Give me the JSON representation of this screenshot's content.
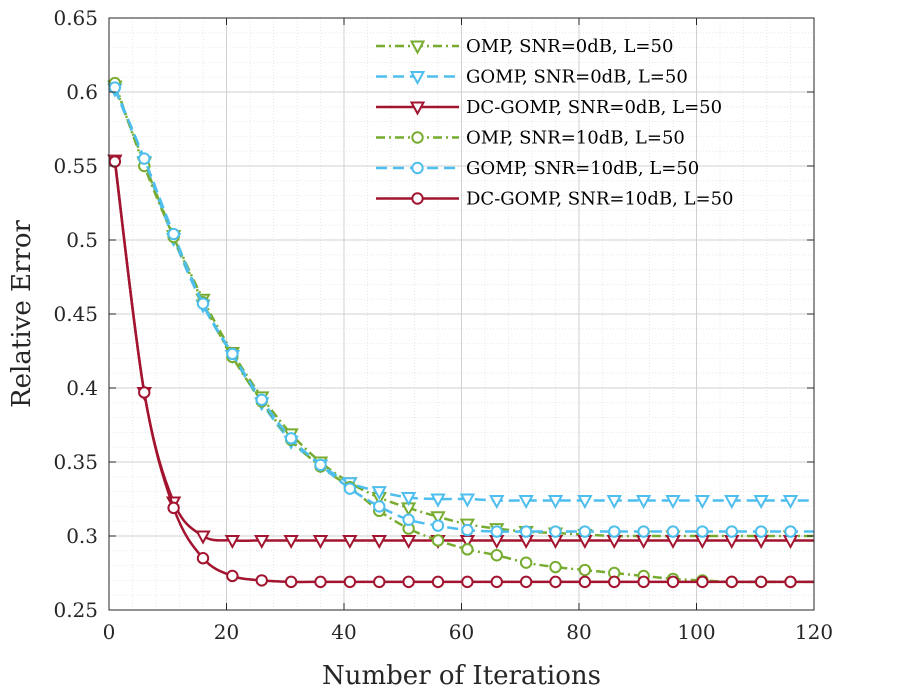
{
  "chart_data": {
    "type": "line",
    "title": "",
    "xlabel": "Number of Iterations",
    "ylabel": "Relative Error",
    "xlim": [
      0,
      120
    ],
    "ylim": [
      0.25,
      0.65
    ],
    "xticks": [
      0,
      20,
      40,
      60,
      80,
      100,
      120
    ],
    "yticks": [
      0.25,
      0.3,
      0.35,
      0.4,
      0.45,
      0.5,
      0.55,
      0.6,
      0.65
    ],
    "xtick_labels": [
      "0",
      "20",
      "40",
      "60",
      "80",
      "100",
      "120"
    ],
    "ytick_labels": [
      "0.25",
      "0.3",
      "0.35",
      "0.4",
      "0.45",
      "0.5",
      "0.55",
      "0.6",
      "0.65"
    ],
    "grid": true,
    "legend_position": "top-right",
    "x": [
      1,
      6,
      11,
      16,
      21,
      26,
      31,
      36,
      41,
      46,
      51,
      56,
      61,
      66,
      71,
      76,
      81,
      86,
      91,
      96,
      101,
      106,
      111,
      116
    ],
    "series": [
      {
        "name": "OMP, SNR=0dB, L=50",
        "color": "#77AC30",
        "line": "dashdot",
        "marker": "triangle-down",
        "values": [
          0.604,
          0.552,
          0.503,
          0.46,
          0.424,
          0.394,
          0.369,
          0.35,
          0.336,
          0.326,
          0.319,
          0.313,
          0.308,
          0.305,
          0.303,
          0.302,
          0.301,
          0.3,
          0.3,
          0.3,
          0.3,
          0.3,
          0.3,
          0.3
        ]
      },
      {
        "name": "GOMP, SNR=0dB, L=50",
        "color": "#4DBEEE",
        "line": "dashed",
        "marker": "triangle-down",
        "values": [
          0.602,
          0.553,
          0.501,
          0.456,
          0.422,
          0.39,
          0.364,
          0.348,
          0.336,
          0.33,
          0.326,
          0.325,
          0.325,
          0.324,
          0.324,
          0.324,
          0.324,
          0.324,
          0.324,
          0.324,
          0.324,
          0.324,
          0.324,
          0.324
        ]
      },
      {
        "name": "DC-GOMP, SNR=0dB, L=50",
        "color": "#A2142F",
        "line": "solid",
        "marker": "triangle-down",
        "values": [
          0.554,
          0.397,
          0.323,
          0.3,
          0.297,
          0.297,
          0.297,
          0.297,
          0.297,
          0.297,
          0.297,
          0.297,
          0.297,
          0.297,
          0.297,
          0.297,
          0.297,
          0.297,
          0.297,
          0.297,
          0.297,
          0.297,
          0.297,
          0.297
        ]
      },
      {
        "name": "OMP, SNR=10dB, L=50",
        "color": "#77AC30",
        "line": "dashdot",
        "marker": "circle",
        "values": [
          0.606,
          0.55,
          0.502,
          0.458,
          0.421,
          0.391,
          0.365,
          0.347,
          0.333,
          0.317,
          0.305,
          0.297,
          0.291,
          0.287,
          0.282,
          0.279,
          0.277,
          0.275,
          0.273,
          0.271,
          0.27,
          0.269,
          0.269,
          0.269
        ]
      },
      {
        "name": "GOMP, SNR=10dB, L=50",
        "color": "#4DBEEE",
        "line": "dashed",
        "marker": "circle",
        "values": [
          0.603,
          0.555,
          0.504,
          0.457,
          0.423,
          0.392,
          0.366,
          0.348,
          0.332,
          0.32,
          0.311,
          0.307,
          0.304,
          0.303,
          0.303,
          0.303,
          0.303,
          0.303,
          0.303,
          0.303,
          0.303,
          0.303,
          0.303,
          0.303
        ]
      },
      {
        "name": "DC-GOMP, SNR=10dB, L=50",
        "color": "#A2142F",
        "line": "solid",
        "marker": "circle",
        "values": [
          0.553,
          0.397,
          0.319,
          0.285,
          0.273,
          0.27,
          0.269,
          0.269,
          0.269,
          0.269,
          0.269,
          0.269,
          0.269,
          0.269,
          0.269,
          0.269,
          0.269,
          0.269,
          0.269,
          0.269,
          0.269,
          0.269,
          0.269,
          0.269
        ]
      }
    ]
  }
}
